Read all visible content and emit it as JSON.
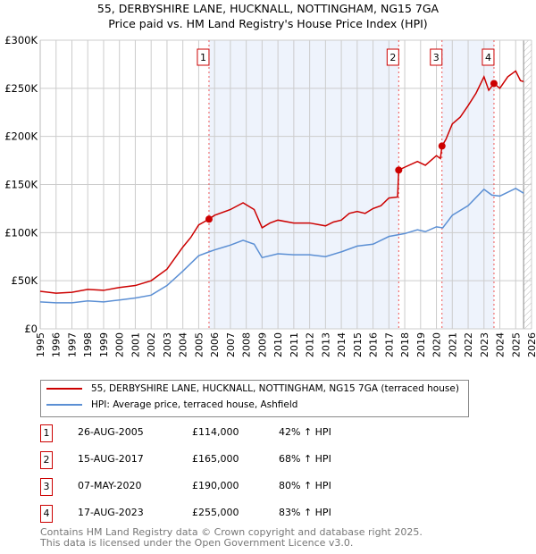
{
  "chart_data": {
    "type": "line",
    "title": "55, DERBYSHIRE LANE, HUCKNALL, NOTTINGHAM, NG15 7GA",
    "subtitle": "Price paid vs. HM Land Registry's House Price Index (HPI)",
    "xlim": [
      1995,
      2026
    ],
    "ylim": [
      0,
      300000
    ],
    "yticks": [
      {
        "v": 0,
        "label": "£0"
      },
      {
        "v": 50000,
        "label": "£50K"
      },
      {
        "v": 100000,
        "label": "£100K"
      },
      {
        "v": 150000,
        "label": "£150K"
      },
      {
        "v": 200000,
        "label": "£200K"
      },
      {
        "v": 250000,
        "label": "£250K"
      },
      {
        "v": 300000,
        "label": "£300K"
      }
    ],
    "xticks": [
      "1995",
      "1996",
      "1997",
      "1998",
      "1999",
      "2000",
      "2001",
      "2002",
      "2003",
      "2004",
      "2005",
      "2006",
      "2007",
      "2008",
      "2009",
      "2010",
      "2011",
      "2012",
      "2013",
      "2014",
      "2015",
      "2016",
      "2017",
      "2018",
      "2019",
      "2020",
      "2021",
      "2022",
      "2023",
      "2024",
      "2025",
      "2026"
    ],
    "grid": true,
    "shaded_ranges": [
      [
        2005.65,
        2017.62
      ],
      [
        2020.35,
        2023.63
      ]
    ],
    "forecast_from": 2025.5,
    "series": [
      {
        "name": "55, DERBYSHIRE LANE, HUCKNALL, NOTTINGHAM, NG15 7GA (terraced house)",
        "color": "#cc0000",
        "points": [
          [
            1995,
            39
          ],
          [
            1996,
            37
          ],
          [
            1997,
            38
          ],
          [
            1998,
            41
          ],
          [
            1999,
            40
          ],
          [
            2000,
            43
          ],
          [
            2001,
            45
          ],
          [
            2002,
            50
          ],
          [
            2003,
            62
          ],
          [
            2004,
            85
          ],
          [
            2004.5,
            95
          ],
          [
            2005,
            108
          ],
          [
            2005.65,
            114
          ],
          [
            2006,
            118
          ],
          [
            2007,
            124
          ],
          [
            2007.8,
            131
          ],
          [
            2008.5,
            124
          ],
          [
            2009,
            105
          ],
          [
            2009.5,
            110
          ],
          [
            2010,
            113
          ],
          [
            2011,
            110
          ],
          [
            2012,
            110
          ],
          [
            2013,
            107
          ],
          [
            2013.5,
            111
          ],
          [
            2014,
            113
          ],
          [
            2014.5,
            120
          ],
          [
            2015,
            122
          ],
          [
            2015.5,
            120
          ],
          [
            2016,
            125
          ],
          [
            2016.5,
            128
          ],
          [
            2017,
            136
          ],
          [
            2017.55,
            137
          ],
          [
            2017.62,
            165
          ],
          [
            2018,
            168
          ],
          [
            2018.8,
            174
          ],
          [
            2019.3,
            170
          ],
          [
            2020,
            180
          ],
          [
            2020.25,
            177
          ],
          [
            2020.35,
            190
          ],
          [
            2020.6,
            197
          ],
          [
            2021,
            213
          ],
          [
            2021.5,
            220
          ],
          [
            2022,
            232
          ],
          [
            2022.5,
            245
          ],
          [
            2023,
            262
          ],
          [
            2023.3,
            248
          ],
          [
            2023.63,
            255
          ],
          [
            2024,
            250
          ],
          [
            2024.5,
            262
          ],
          [
            2025,
            268
          ],
          [
            2025.3,
            258
          ],
          [
            2025.5,
            257
          ]
        ]
      },
      {
        "name": "HPI: Average price, terraced house, Ashfield",
        "color": "#5b8fd4",
        "points": [
          [
            1995,
            28
          ],
          [
            1996,
            27
          ],
          [
            1997,
            27
          ],
          [
            1998,
            29
          ],
          [
            1999,
            28
          ],
          [
            2000,
            30
          ],
          [
            2001,
            32
          ],
          [
            2002,
            35
          ],
          [
            2003,
            45
          ],
          [
            2004,
            60
          ],
          [
            2005,
            76
          ],
          [
            2005.65,
            80
          ],
          [
            2006,
            82
          ],
          [
            2007,
            87
          ],
          [
            2007.8,
            92
          ],
          [
            2008.5,
            88
          ],
          [
            2009,
            74
          ],
          [
            2010,
            78
          ],
          [
            2011,
            77
          ],
          [
            2012,
            77
          ],
          [
            2013,
            75
          ],
          [
            2014,
            80
          ],
          [
            2015,
            86
          ],
          [
            2016,
            88
          ],
          [
            2017,
            96
          ],
          [
            2018,
            99
          ],
          [
            2018.8,
            103
          ],
          [
            2019.3,
            101
          ],
          [
            2020,
            106
          ],
          [
            2020.4,
            105
          ],
          [
            2021,
            118
          ],
          [
            2022,
            128
          ],
          [
            2023,
            145
          ],
          [
            2023.5,
            139
          ],
          [
            2024,
            138
          ],
          [
            2025,
            146
          ],
          [
            2025.5,
            141
          ]
        ]
      }
    ],
    "sales": [
      {
        "n": "1",
        "x": 2005.65,
        "y": 114,
        "date": "26-AUG-2005",
        "price": "£114,000",
        "hpi": "42% ↑ HPI"
      },
      {
        "n": "2",
        "x": 2017.62,
        "y": 165,
        "date": "15-AUG-2017",
        "price": "£165,000",
        "hpi": "68% ↑ HPI"
      },
      {
        "n": "3",
        "x": 2020.35,
        "y": 190,
        "date": "07-MAY-2020",
        "price": "£190,000",
        "hpi": "80% ↑ HPI"
      },
      {
        "n": "4",
        "x": 2023.63,
        "y": 255,
        "date": "17-AUG-2023",
        "price": "£255,000",
        "hpi": "83% ↑ HPI"
      }
    ]
  },
  "footer": [
    "Contains HM Land Registry data © Crown copyright and database right 2025.",
    "This data is licensed under the Open Government Licence v3.0."
  ]
}
